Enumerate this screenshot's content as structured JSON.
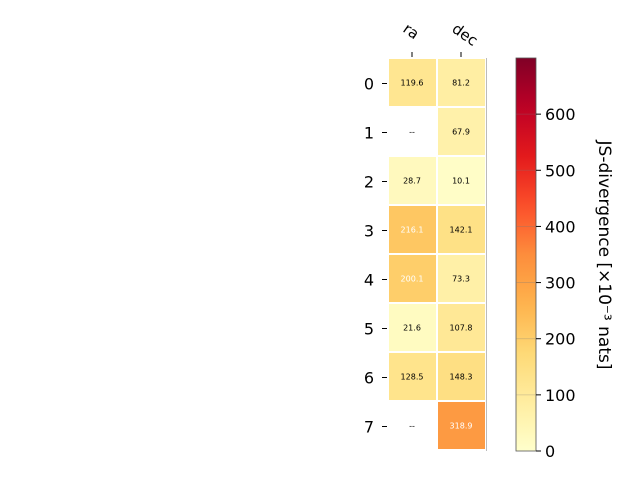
{
  "chart_data": {
    "type": "heatmap",
    "columns": [
      "ra",
      "dec"
    ],
    "rows": [
      "0",
      "1",
      "2",
      "3",
      "4",
      "5",
      "6",
      "7"
    ],
    "values": [
      [
        119.6,
        81.2
      ],
      [
        null,
        67.9
      ],
      [
        28.7,
        10.1
      ],
      [
        216.1,
        142.1
      ],
      [
        200.1,
        73.3
      ],
      [
        21.6,
        107.8
      ],
      [
        128.5,
        148.3
      ],
      [
        null,
        318.9
      ]
    ],
    "cell_labels": [
      [
        "119.6",
        "81.2"
      ],
      [
        "--",
        "67.9"
      ],
      [
        "28.7",
        "10.1"
      ],
      [
        "216.1",
        "142.1"
      ],
      [
        "200.1",
        "73.3"
      ],
      [
        "21.6",
        "107.8"
      ],
      [
        "128.5",
        "148.3"
      ],
      [
        "--",
        "318.9"
      ]
    ],
    "colorbar": {
      "label": "JS-divergence [×10⁻³ nats]",
      "range": [
        0,
        700
      ],
      "ticks": [
        "0",
        "100",
        "200",
        "300",
        "400",
        "500",
        "600"
      ],
      "tick_values": [
        0,
        100,
        200,
        300,
        400,
        500,
        600
      ],
      "colormap": "YlOrRd"
    },
    "colors": {
      "label_dark": "#000000",
      "label_light": "#ffffff",
      "missing_cell": "#ffffff"
    }
  }
}
